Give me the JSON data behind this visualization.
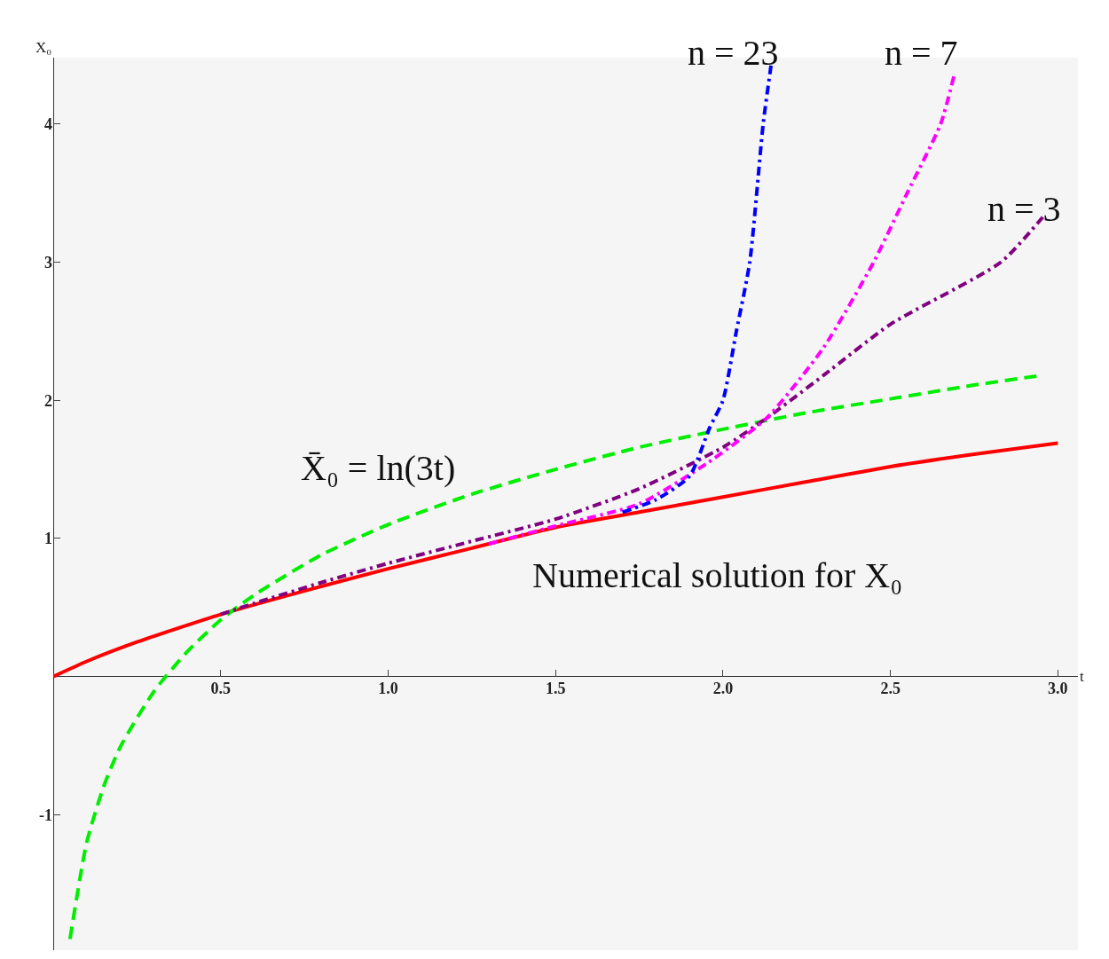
{
  "chart_data": {
    "type": "line",
    "xlabel": "t",
    "ylabel": "X₀",
    "xlim": [
      0,
      3.06
    ],
    "ylim": [
      -1.98,
      4.48
    ],
    "xticks": [
      0.5,
      {
        "value": 1,
        "label": "1.0"
      },
      1.5,
      {
        "value": 2,
        "label": "2.0"
      },
      2.5,
      {
        "value": 3,
        "label": "3.0"
      }
    ],
    "yticks": [
      -1,
      1,
      2,
      3,
      4
    ],
    "grid": false,
    "series": [
      {
        "color": "#ff0000",
        "line_style": "solid",
        "x": [
          0,
          0.1,
          0.25,
          0.5,
          0.75,
          1.0,
          1.25,
          1.5,
          1.75,
          2.0,
          2.25,
          2.5,
          2.75,
          3.0
        ],
        "values": [
          0,
          0.11,
          0.25,
          0.45,
          0.62,
          0.78,
          0.93,
          1.08,
          1.19,
          1.3,
          1.41,
          1.52,
          1.61,
          1.69
        ]
      },
      {
        "color": "#00ee00",
        "line_style": "dashed",
        "x": [
          0.05,
          0.1,
          0.15,
          0.2,
          0.3,
          0.4,
          0.5,
          0.6,
          0.8,
          1.0,
          1.25,
          1.5,
          1.75,
          2.0,
          2.25,
          2.5,
          2.75,
          2.95
        ],
        "values": [
          -1.9,
          -1.2,
          -0.8,
          -0.51,
          -0.11,
          0.18,
          0.41,
          0.59,
          0.88,
          1.1,
          1.32,
          1.5,
          1.66,
          1.79,
          1.91,
          2.01,
          2.11,
          2.18
        ]
      },
      {
        "color": "#800080",
        "line_style": "dashdot",
        "x": [
          0.5,
          0.6,
          0.8,
          1.0,
          1.25,
          1.5,
          1.75,
          2.0,
          2.13,
          2.3,
          2.5,
          2.83,
          2.96
        ],
        "values": [
          0.45,
          0.53,
          0.68,
          0.82,
          0.98,
          1.14,
          1.36,
          1.66,
          1.87,
          2.18,
          2.55,
          3.0,
          3.34
        ]
      },
      {
        "color": "#ff00ff",
        "line_style": "dashdot",
        "x": [
          1.3,
          1.5,
          1.75,
          1.95,
          2.13,
          2.3,
          2.45,
          2.55,
          2.65,
          2.69
        ],
        "values": [
          0.96,
          1.09,
          1.25,
          1.54,
          1.87,
          2.38,
          3.0,
          3.5,
          4.0,
          4.35
        ]
      },
      {
        "color": "#0000ff",
        "line_style": "dashdot",
        "x": [
          1.7,
          1.8,
          1.9,
          1.96,
          2.0,
          2.04,
          2.08,
          2.12,
          2.145
        ],
        "values": [
          1.19,
          1.28,
          1.45,
          1.8,
          2.0,
          2.5,
          3.0,
          4.0,
          4.45
        ]
      }
    ],
    "annotations": [
      "n = 23",
      "n = 7",
      "n = 3",
      "X̄₀ = ln(3t)",
      "Numerical solution for X₀"
    ]
  }
}
